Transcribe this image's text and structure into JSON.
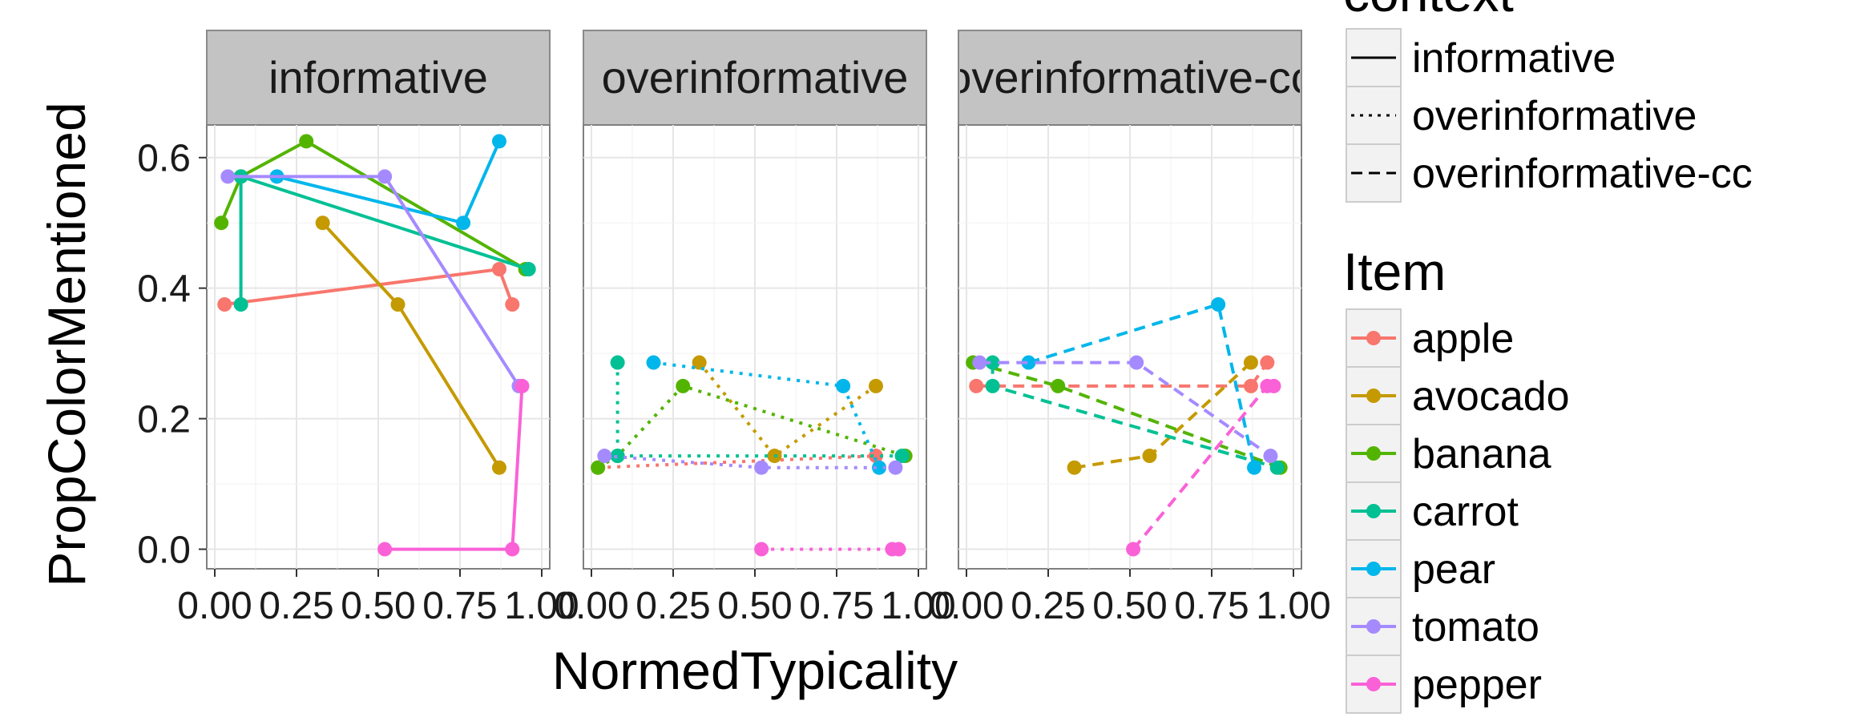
{
  "chart_data": {
    "type": "line",
    "facets": [
      "informative",
      "overinformative",
      "overinformative-cc"
    ],
    "xlabel": "NormedTypicality",
    "ylabel": "PropColorMentioned",
    "xlim": [
      0,
      1
    ],
    "ylim": [
      -0.03,
      0.65
    ],
    "x_ticks": [
      "0.00",
      "0.25",
      "0.50",
      "0.75",
      "1.00"
    ],
    "y_ticks": [
      "0.0",
      "0.2",
      "0.4",
      "0.6"
    ],
    "grid": true,
    "legend_position": "right",
    "linetype_legend": {
      "title": "context",
      "entries": [
        {
          "label": "informative",
          "dash": "solid"
        },
        {
          "label": "overinformative",
          "dash": "dotted"
        },
        {
          "label": "overinformative-cc",
          "dash": "dashed"
        }
      ]
    },
    "color_legend": {
      "title": "Item",
      "entries": [
        {
          "label": "apple",
          "color": "#F8766D"
        },
        {
          "label": "avocado",
          "color": "#C49A00"
        },
        {
          "label": "banana",
          "color": "#53B400"
        },
        {
          "label": "carrot",
          "color": "#00C094"
        },
        {
          "label": "pear",
          "color": "#00B6EB"
        },
        {
          "label": "tomato",
          "color": "#A58AFF"
        },
        {
          "label": "pepper",
          "color": "#FB61D7"
        }
      ]
    },
    "series": [
      {
        "facet": 0,
        "item": 0,
        "points": [
          [
            0.03,
            0.375
          ],
          [
            0.87,
            0.429
          ],
          [
            0.91,
            0.375
          ]
        ]
      },
      {
        "facet": 0,
        "item": 1,
        "points": [
          [
            0.33,
            0.5
          ],
          [
            0.56,
            0.375
          ],
          [
            0.87,
            0.125
          ]
        ]
      },
      {
        "facet": 0,
        "item": 2,
        "points": [
          [
            0.02,
            0.5
          ],
          [
            0.08,
            0.571
          ],
          [
            0.28,
            0.625
          ],
          [
            0.95,
            0.429
          ]
        ]
      },
      {
        "facet": 0,
        "item": 3,
        "points": [
          [
            0.08,
            0.375
          ],
          [
            0.08,
            0.571
          ],
          [
            0.96,
            0.429
          ]
        ]
      },
      {
        "facet": 0,
        "item": 4,
        "points": [
          [
            0.19,
            0.571
          ],
          [
            0.76,
            0.5
          ],
          [
            0.87,
            0.625
          ]
        ]
      },
      {
        "facet": 0,
        "item": 5,
        "points": [
          [
            0.04,
            0.571
          ],
          [
            0.52,
            0.571
          ],
          [
            0.93,
            0.25
          ]
        ]
      },
      {
        "facet": 0,
        "item": 6,
        "points": [
          [
            0.52,
            0.0
          ],
          [
            0.91,
            0.0
          ],
          [
            0.94,
            0.25
          ]
        ]
      },
      {
        "facet": 1,
        "item": 0,
        "points": [
          [
            0.02,
            0.125
          ],
          [
            0.87,
            0.143
          ]
        ]
      },
      {
        "facet": 1,
        "item": 1,
        "points": [
          [
            0.33,
            0.286
          ],
          [
            0.56,
            0.143
          ],
          [
            0.87,
            0.25
          ]
        ]
      },
      {
        "facet": 1,
        "item": 2,
        "points": [
          [
            0.02,
            0.125
          ],
          [
            0.08,
            0.143
          ],
          [
            0.28,
            0.25
          ],
          [
            0.96,
            0.143
          ]
        ]
      },
      {
        "facet": 1,
        "item": 3,
        "points": [
          [
            0.08,
            0.286
          ],
          [
            0.08,
            0.143
          ],
          [
            0.95,
            0.143
          ]
        ]
      },
      {
        "facet": 1,
        "item": 4,
        "points": [
          [
            0.19,
            0.286
          ],
          [
            0.77,
            0.25
          ],
          [
            0.88,
            0.125
          ]
        ]
      },
      {
        "facet": 1,
        "item": 5,
        "points": [
          [
            0.04,
            0.143
          ],
          [
            0.52,
            0.125
          ],
          [
            0.93,
            0.125
          ]
        ]
      },
      {
        "facet": 1,
        "item": 6,
        "points": [
          [
            0.52,
            0.0
          ],
          [
            0.92,
            0.0
          ],
          [
            0.94,
            0.0
          ]
        ]
      },
      {
        "facet": 2,
        "item": 0,
        "points": [
          [
            0.03,
            0.25
          ],
          [
            0.87,
            0.25
          ],
          [
            0.92,
            0.286
          ]
        ]
      },
      {
        "facet": 2,
        "item": 1,
        "points": [
          [
            0.33,
            0.125
          ],
          [
            0.56,
            0.143
          ],
          [
            0.87,
            0.286
          ]
        ]
      },
      {
        "facet": 2,
        "item": 2,
        "points": [
          [
            0.02,
            0.286
          ],
          [
            0.28,
            0.25
          ],
          [
            0.96,
            0.125
          ]
        ]
      },
      {
        "facet": 2,
        "item": 3,
        "points": [
          [
            0.08,
            0.286
          ],
          [
            0.08,
            0.25
          ],
          [
            0.95,
            0.125
          ]
        ]
      },
      {
        "facet": 2,
        "item": 4,
        "points": [
          [
            0.19,
            0.286
          ],
          [
            0.77,
            0.375
          ],
          [
            0.88,
            0.125
          ]
        ]
      },
      {
        "facet": 2,
        "item": 5,
        "points": [
          [
            0.04,
            0.286
          ],
          [
            0.52,
            0.286
          ],
          [
            0.93,
            0.143
          ]
        ]
      },
      {
        "facet": 2,
        "item": 6,
        "points": [
          [
            0.51,
            0.0
          ],
          [
            0.92,
            0.25
          ],
          [
            0.94,
            0.25
          ]
        ]
      }
    ]
  }
}
